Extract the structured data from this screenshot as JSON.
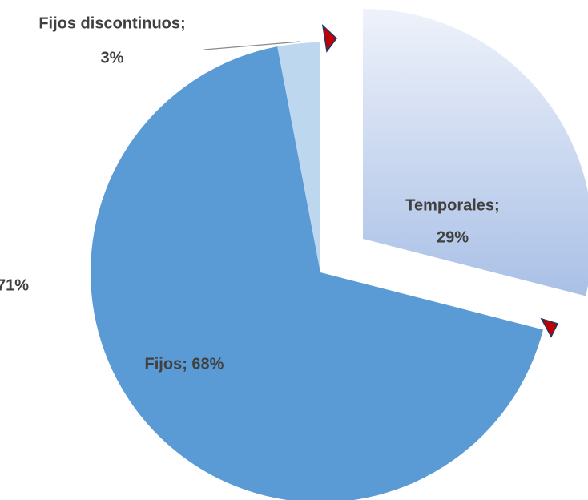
{
  "chart_data": {
    "type": "pie",
    "values": [
      29,
      68,
      3
    ],
    "value_labels": [
      [
        "Temporales;",
        "29%"
      ],
      [
        "Fijos; 68%"
      ],
      [
        "Fijos discontinuos;",
        "3%"
      ]
    ],
    "colors": [
      "#a9c0e6",
      "#5b9bd5",
      "#bdd7ee"
    ],
    "explode": [
      true,
      false,
      false
    ],
    "annotation": "71%",
    "annotation_color": "#ed7d31"
  }
}
